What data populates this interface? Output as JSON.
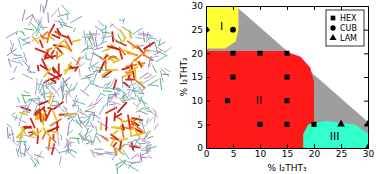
{
  "chart_data": {
    "type": "scatter",
    "xlabel": "% I₂THT₃",
    "ylabel": "% I₂THT₂",
    "xlim": [
      0,
      30
    ],
    "ylim": [
      0,
      30
    ],
    "xticks": [
      0,
      5,
      10,
      15,
      20,
      25,
      30
    ],
    "yticks": [
      0,
      5,
      10,
      15,
      20,
      25,
      30
    ],
    "legend": "top-right",
    "series": [
      {
        "name": "HEX",
        "marker": "square",
        "color": "#000000",
        "x": [
          5,
          10,
          15,
          5,
          15,
          15,
          4,
          10,
          15,
          20
        ],
        "values": [
          20,
          20,
          20,
          15,
          15,
          10,
          10,
          5,
          5,
          5
        ]
      },
      {
        "name": "CUB",
        "marker": "circle",
        "color": "#000000",
        "x": [
          5,
          0
        ],
        "values": [
          25,
          25
        ]
      },
      {
        "name": "LAM",
        "marker": "triangle",
        "color": "#000000",
        "x": [
          25,
          30,
          30
        ],
        "values": [
          5,
          5,
          0
        ]
      }
    ],
    "regions": [
      {
        "color": "#9e9e9e",
        "points": [
          [
            0,
            30
          ],
          [
            5.5,
            30
          ],
          [
            30,
            5.5
          ],
          [
            30,
            0
          ],
          [
            0,
            0
          ]
        ]
      },
      {
        "label": "I",
        "color": "#ffff33",
        "points": [
          [
            0,
            30
          ],
          [
            6,
            30
          ],
          [
            6,
            25
          ],
          [
            5.5,
            22.5
          ],
          [
            3.5,
            21
          ],
          [
            0,
            21
          ]
        ]
      },
      {
        "label": "II",
        "color": "#ff1a1a",
        "points": [
          [
            0,
            0
          ],
          [
            20,
            0
          ],
          [
            20,
            14
          ],
          [
            19.3,
            17
          ],
          [
            17.5,
            19.3
          ],
          [
            14.5,
            20.5
          ],
          [
            0,
            20.5
          ]
        ]
      },
      {
        "label": "III",
        "color": "#33ffcc",
        "points": [
          [
            18,
            0
          ],
          [
            30,
            0
          ],
          [
            30,
            3
          ],
          [
            27.5,
            5
          ],
          [
            22,
            5.7
          ],
          [
            19,
            5
          ],
          [
            18,
            3
          ]
        ]
      }
    ]
  }
}
